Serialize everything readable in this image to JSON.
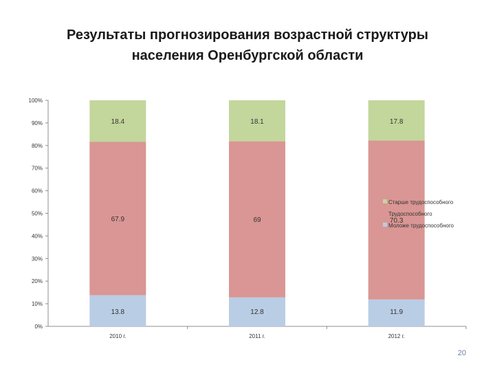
{
  "slide": {
    "title_line1": "Результаты прогнозирования возрастной структуры",
    "title_line2": "населения Оренбургской области",
    "page_number": "20"
  },
  "chart_data": {
    "type": "bar",
    "stacked": true,
    "percent_stacked": true,
    "categories": [
      "2010 г.",
      "2011 г.",
      "2012 г."
    ],
    "series": [
      {
        "name": "Моложе трудоспособного",
        "values": [
          13.8,
          12.8,
          11.9
        ],
        "color": "#b9cde5"
      },
      {
        "name": "Трудоспособного",
        "values": [
          67.9,
          69,
          70.3
        ],
        "color": "#d99694"
      },
      {
        "name": "Старше трудоспособного",
        "values": [
          18.4,
          18.1,
          17.8
        ],
        "color": "#c3d69b"
      }
    ],
    "data_labels": [
      [
        "13.8",
        "12.8",
        "11.9"
      ],
      [
        "67.9",
        "69",
        "70.3"
      ],
      [
        "18.4",
        "18.1",
        "17.8"
      ]
    ],
    "y_ticks": [
      "0%",
      "10%",
      "20%",
      "30%",
      "40%",
      "50%",
      "60%",
      "70%",
      "80%",
      "90%",
      "100%"
    ],
    "ylim": [
      0,
      100
    ],
    "legend": {
      "position": "right",
      "entries": [
        "Старше трудоспособного",
        "Трудоспособного",
        "Моложе трудоспособного"
      ]
    },
    "grid": false
  }
}
